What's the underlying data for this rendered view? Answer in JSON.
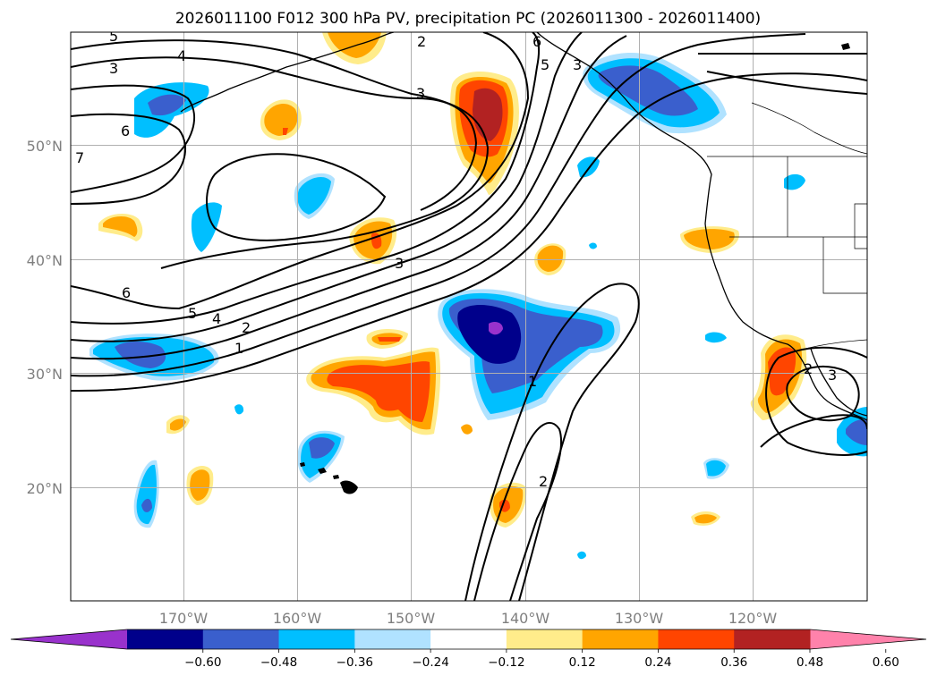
{
  "title": "2026011100 F012 300 hPa PV, precipitation PC (2026011300 - 2026011400)",
  "axes": {
    "x_ticks": [
      "170°W",
      "160°W",
      "150°W",
      "140°W",
      "130°W",
      "120°W"
    ],
    "y_ticks": [
      "50°N",
      "40°N",
      "30°N",
      "20°N"
    ]
  },
  "colorbar": {
    "colors": [
      "#9932CC",
      "#00008B",
      "#3A5FCD",
      "#00BFFF",
      "#B0E2FF",
      "#FFFFFF",
      "#FFEC8B",
      "#FFA500",
      "#FF4500",
      "#B22222",
      "#FF82AB"
    ],
    "ticks": [
      "−0.60",
      "−0.48",
      "−0.36",
      "−0.24",
      "−0.12",
      "0.12",
      "0.24",
      "0.36",
      "0.48",
      "0.60"
    ]
  },
  "contour_labels": [
    "5",
    "4",
    "3",
    "6",
    "7",
    "3",
    "2",
    "6",
    "5",
    "3",
    "6",
    "5",
    "4",
    "2",
    "1",
    "3",
    "1",
    "2",
    "2",
    "3"
  ]
}
